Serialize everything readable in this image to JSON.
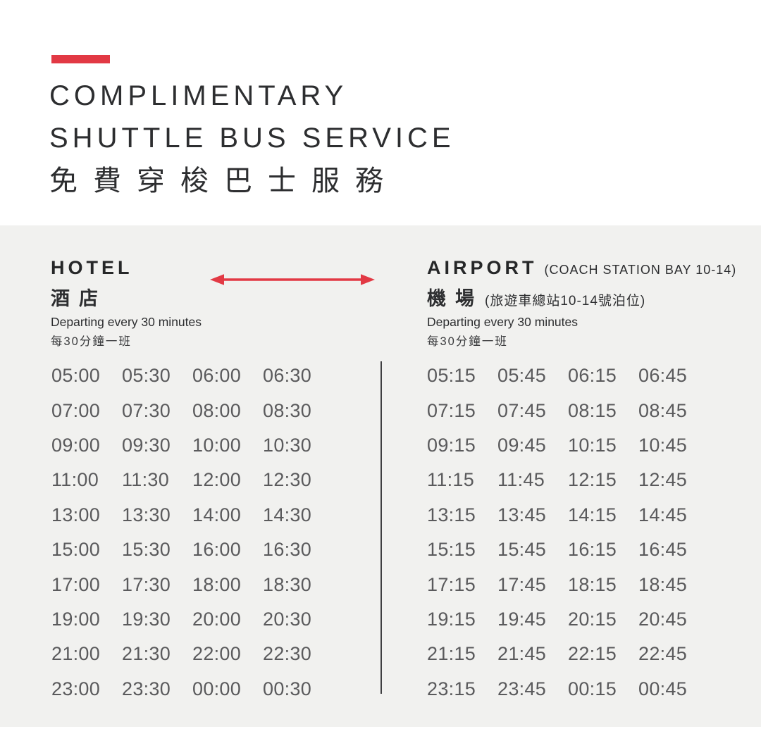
{
  "header": {
    "title_line1": "COMPLIMENTARY",
    "title_line2": "SHUTTLE BUS SERVICE",
    "title_zh": "免費穿梭巴士服務"
  },
  "hotel": {
    "title": "HOTEL",
    "title_zh": "酒店",
    "frequency_en": "Departing every 30 minutes",
    "frequency_zh": "每30分鐘一班",
    "times": [
      [
        "05:00",
        "05:30",
        "06:00",
        "06:30"
      ],
      [
        "07:00",
        "07:30",
        "08:00",
        "08:30"
      ],
      [
        "09:00",
        "09:30",
        "10:00",
        "10:30"
      ],
      [
        "11:00",
        "11:30",
        "12:00",
        "12:30"
      ],
      [
        "13:00",
        "13:30",
        "14:00",
        "14:30"
      ],
      [
        "15:00",
        "15:30",
        "16:00",
        "16:30"
      ],
      [
        "17:00",
        "17:30",
        "18:00",
        "18:30"
      ],
      [
        "19:00",
        "19:30",
        "20:00",
        "20:30"
      ],
      [
        "21:00",
        "21:30",
        "22:00",
        "22:30"
      ],
      [
        "23:00",
        "23:30",
        "00:00",
        "00:30"
      ]
    ]
  },
  "airport": {
    "title": "AIRPORT",
    "subtitle": "(COACH STATION BAY 10-14)",
    "title_zh": "機場",
    "subtitle_zh": "(旅遊車總站10-14號泊位)",
    "frequency_en": "Departing every 30 minutes",
    "frequency_zh": "每30分鐘一班",
    "times": [
      [
        "05:15",
        "05:45",
        "06:15",
        "06:45"
      ],
      [
        "07:15",
        "07:45",
        "08:15",
        "08:45"
      ],
      [
        "09:15",
        "09:45",
        "10:15",
        "10:45"
      ],
      [
        "11:15",
        "11:45",
        "12:15",
        "12:45"
      ],
      [
        "13:15",
        "13:45",
        "14:15",
        "14:45"
      ],
      [
        "15:15",
        "15:45",
        "16:15",
        "16:45"
      ],
      [
        "17:15",
        "17:45",
        "18:15",
        "18:45"
      ],
      [
        "19:15",
        "19:45",
        "20:15",
        "20:45"
      ],
      [
        "21:15",
        "21:45",
        "22:15",
        "22:45"
      ],
      [
        "23:15",
        "23:45",
        "00:15",
        "00:45"
      ]
    ]
  },
  "icons": {
    "route_arrow": "double-headed-arrow"
  },
  "colors": {
    "accent_red": "#e23944",
    "board_background": "#f1f1ef",
    "time_text": "#5a5a5c"
  }
}
